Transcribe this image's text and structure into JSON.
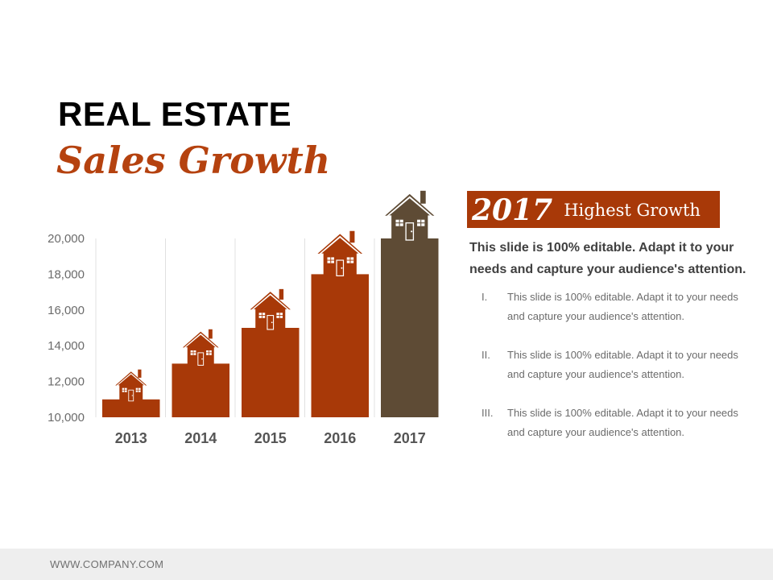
{
  "slide": {
    "title": "REAL ESTATE",
    "subtitle": "Sales Growth"
  },
  "highlight": {
    "year": "2017",
    "label": "Highest Growth"
  },
  "lead_text": "This slide is 100% editable. Adapt it to your needs and capture your audience's attention.",
  "points": [
    {
      "num": "I.",
      "text": "This slide is 100% editable. Adapt it to your needs and capture your audience's attention."
    },
    {
      "num": "II.",
      "text": "This slide is 100% editable. Adapt it to your needs and capture your audience's attention."
    },
    {
      "num": "III.",
      "text": "This slide is 100% editable. Adapt it to your needs and capture your audience's attention."
    }
  ],
  "footer": {
    "text": "WWW.COMPANY.COM"
  },
  "colors": {
    "accent": "#a83908",
    "highlight_bar": "#5e4b35",
    "subtitle": "#b5420f"
  },
  "chart_data": {
    "type": "bar",
    "categories": [
      "2013",
      "2014",
      "2015",
      "2016",
      "2017"
    ],
    "values": [
      11000,
      13000,
      15000,
      18000,
      20000
    ],
    "ylim": [
      10000,
      20000
    ],
    "yticks": [
      "10,000",
      "12,000",
      "14,000",
      "16,000",
      "18,000",
      "20,000"
    ],
    "xlabel": "",
    "ylabel": "",
    "grid": "vertical",
    "bar_colors": [
      "#a83908",
      "#a83908",
      "#a83908",
      "#a83908",
      "#5e4b35"
    ],
    "marker_icon": "house-icon"
  }
}
